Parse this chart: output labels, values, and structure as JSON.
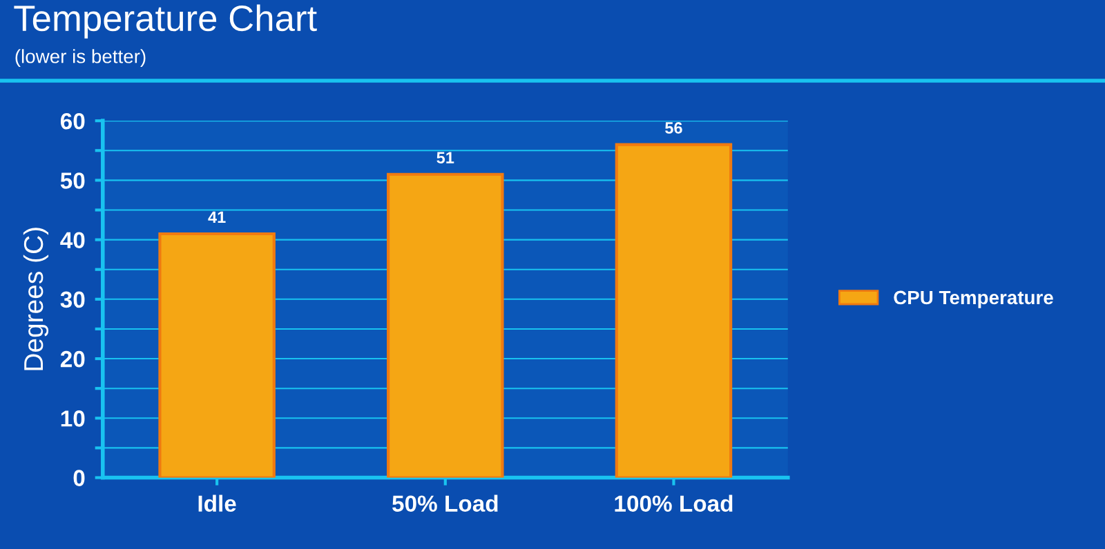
{
  "chart_data": {
    "type": "bar",
    "title": "Temperature Chart",
    "subtitle": "(lower is better)",
    "ylabel": "Degrees (C)",
    "categories": [
      "Idle",
      "50% Load",
      "100% Load"
    ],
    "series": [
      {
        "name": "CPU Temperature",
        "color": "#f5a614",
        "values": [
          41,
          51,
          56
        ]
      }
    ],
    "ylim": [
      0,
      60
    ],
    "yticks": [
      0,
      {
        "value": 5,
        "label": null
      },
      10,
      {
        "value": 15,
        "label": null
      },
      20,
      {
        "value": 25,
        "label": null
      },
      30,
      {
        "value": 35,
        "label": null
      },
      40,
      {
        "value": 45,
        "label": null
      },
      50,
      {
        "value": 55,
        "label": null
      },
      60
    ],
    "grid": "y",
    "legend": "right",
    "data_labels": true
  }
}
